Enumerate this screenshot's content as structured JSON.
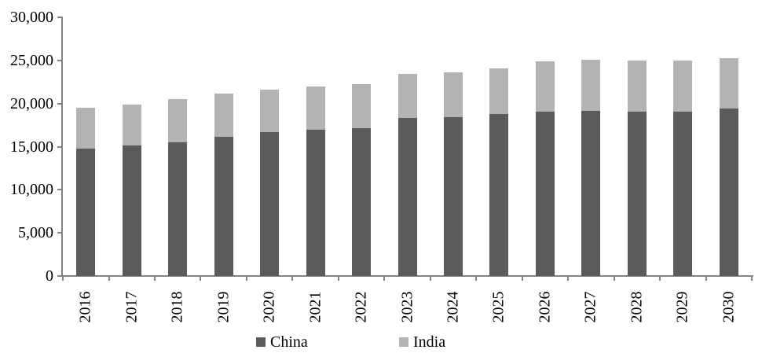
{
  "chart_data": {
    "type": "bar",
    "stacked": true,
    "title": "",
    "xlabel": "",
    "ylabel": "",
    "categories": [
      "2016",
      "2017",
      "2018",
      "2019",
      "2020",
      "2021",
      "2022",
      "2023",
      "2024",
      "2025",
      "2026",
      "2027",
      "2028",
      "2029",
      "2030"
    ],
    "series": [
      {
        "name": "China",
        "color": "#5b5b5b",
        "values": [
          14800,
          15150,
          15550,
          16100,
          16650,
          16950,
          17150,
          18350,
          18400,
          18800,
          19100,
          19150,
          19100,
          19100,
          19400
        ]
      },
      {
        "name": "India",
        "color": "#b3b3b3",
        "values": [
          4700,
          4750,
          5000,
          5050,
          5000,
          5050,
          5100,
          5100,
          5250,
          5300,
          5750,
          5900,
          5900,
          5900,
          5900
        ]
      }
    ],
    "totals": [
      19500,
      19900,
      20550,
      21150,
      21650,
      22000,
      22250,
      23450,
      23650,
      24100,
      24850,
      25050,
      25000,
      25000,
      25300
    ],
    "ylim": [
      0,
      30000
    ],
    "ytick_step": 5000,
    "ytick_labels": [
      "0",
      "5,000",
      "10,000",
      "15,000",
      "20,000",
      "25,000",
      "30,000"
    ],
    "grid": false,
    "legend_position": "bottom",
    "colors": {
      "axis": "#848484",
      "text": "#000000",
      "background": "#ffffff"
    }
  }
}
